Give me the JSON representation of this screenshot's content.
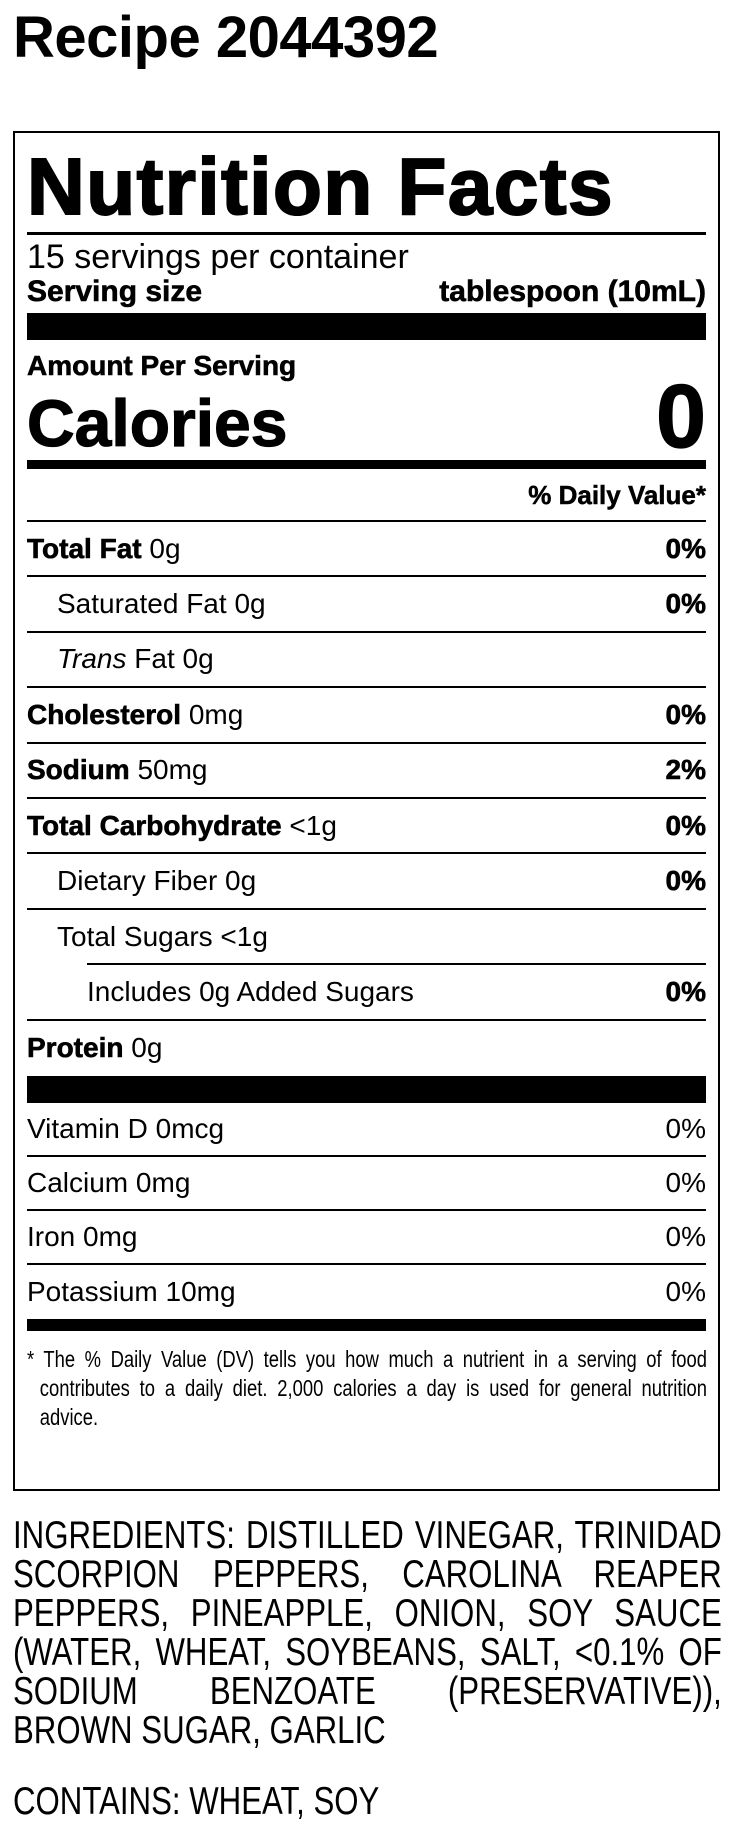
{
  "recipe_title": "Recipe 2044392",
  "label": {
    "title": "Nutrition Facts",
    "servings_per_container": "15 servings per container",
    "serving_size_label": "Serving size",
    "serving_size_value": "tablespoon (10mL)",
    "amount_per_serving": "Amount Per Serving",
    "calories_label": "Calories",
    "calories_value": "0",
    "daily_value_header": "% Daily Value*",
    "nutrients": [
      {
        "name": "Total Fat",
        "amount": "0g",
        "dv": "0%"
      },
      {
        "name": "Saturated Fat",
        "amount": "0g",
        "dv": "0%"
      },
      {
        "name": "Trans",
        "suffix": " Fat",
        "amount": "0g",
        "dv": ""
      },
      {
        "name": "Cholesterol",
        "amount": "0mg",
        "dv": "0%"
      },
      {
        "name": "Sodium",
        "amount": "50mg",
        "dv": "2%"
      },
      {
        "name": "Total Carbohydrate",
        "amount": "<1g",
        "dv": "0%"
      },
      {
        "name": "Dietary Fiber",
        "amount": "0g",
        "dv": "0%"
      },
      {
        "name": "Total Sugars",
        "amount": "<1g",
        "dv": ""
      },
      {
        "name": "Includes 0g Added Sugars",
        "amount": "",
        "dv": "0%"
      },
      {
        "name": "Protein",
        "amount": "0g",
        "dv": ""
      }
    ],
    "vitamins": [
      {
        "name": "Vitamin D",
        "amount": "0mcg",
        "dv": "0%"
      },
      {
        "name": "Calcium",
        "amount": "0mg",
        "dv": "0%"
      },
      {
        "name": "Iron",
        "amount": "0mg",
        "dv": "0%"
      },
      {
        "name": "Potassium",
        "amount": "10mg",
        "dv": "0%"
      }
    ],
    "footnote": "* The % Daily Value (DV) tells you how much a nutrient in a serving of food contributes to a daily diet. 2,000 calories a day is used for general nutrition advice."
  },
  "ingredients": "INGREDIENTS: DISTILLED VINEGAR, TRINIDAD SCORPION PEPPERS, CAROLINA REAPER PEPPERS, PINEAPPLE, ONION, SOY SAUCE (WATER, WHEAT, SOYBEANS, SALT, <0.1% OF SODIUM BENZOATE (PRESERVATIVE)), BROWN SUGAR, GARLIC",
  "contains": "CONTAINS: WHEAT, SOY"
}
